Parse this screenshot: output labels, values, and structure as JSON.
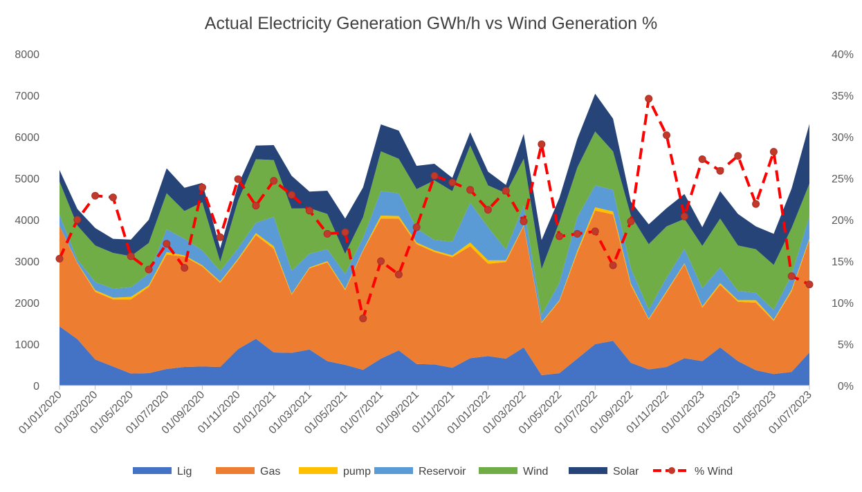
{
  "chart_data": {
    "type": "area",
    "title": "Actual Electricity Generation GWh/h vs Wind Generation %",
    "x_tick_labels": [
      "01/01/2020",
      "01/03/2020",
      "01/05/2020",
      "01/07/2020",
      "01/09/2020",
      "01/11/2020",
      "01/01/2021",
      "01/03/2021",
      "01/05/2021",
      "01/07/2021",
      "01/09/2021",
      "01/11/2021",
      "01/01/2022",
      "01/03/2022",
      "01/05/2022",
      "01/07/2022",
      "01/09/2022",
      "01/11/2022",
      "01/01/2023",
      "01/03/2023",
      "01/05/2023",
      "01/07/2023"
    ],
    "x": [
      "01/01/2020",
      "01/02/2020",
      "01/03/2020",
      "01/04/2020",
      "01/05/2020",
      "01/06/2020",
      "01/07/2020",
      "01/08/2020",
      "01/09/2020",
      "01/10/2020",
      "01/11/2020",
      "01/12/2020",
      "01/01/2021",
      "01/02/2021",
      "01/03/2021",
      "01/04/2021",
      "01/05/2021",
      "01/06/2021",
      "01/07/2021",
      "01/08/2021",
      "01/09/2021",
      "01/10/2021",
      "01/11/2021",
      "01/12/2021",
      "01/01/2022",
      "01/02/2022",
      "01/03/2022",
      "01/04/2022",
      "01/05/2022",
      "01/06/2022",
      "01/07/2022",
      "01/08/2022",
      "01/09/2022",
      "01/10/2022",
      "01/11/2022",
      "01/12/2022",
      "01/01/2023",
      "01/02/2023",
      "01/03/2023",
      "01/04/2023",
      "01/05/2023",
      "01/06/2023",
      "01/07/2023"
    ],
    "y_left": {
      "min": 0,
      "max": 8000,
      "step": 1000
    },
    "y_right": {
      "min": 0,
      "max": 40,
      "step": 5,
      "unit": "%"
    },
    "stacked_series": [
      {
        "name": "Lig",
        "color": "#4472c4",
        "values": [
          1430,
          1120,
          630,
          460,
          290,
          300,
          400,
          450,
          460,
          450,
          880,
          1130,
          800,
          790,
          870,
          590,
          500,
          380,
          650,
          850,
          520,
          510,
          430,
          660,
          710,
          650,
          920,
          250,
          300,
          650,
          1000,
          1080,
          550,
          390,
          450,
          660,
          590,
          920,
          590,
          370,
          280,
          330,
          800
        ]
      },
      {
        "name": "Gas",
        "color": "#ed7d31",
        "values": [
          2420,
          1830,
          1630,
          1620,
          1790,
          2080,
          2760,
          2660,
          2410,
          2030,
          2150,
          2500,
          2500,
          1400,
          1960,
          2380,
          1800,
          2870,
          3380,
          3180,
          2890,
          2710,
          2670,
          2700,
          2230,
          2330,
          2930,
          1260,
          1740,
          2550,
          3220,
          3050,
          1870,
          1200,
          1800,
          2270,
          1290,
          1510,
          1430,
          1630,
          1280,
          1940,
          2710
        ]
      },
      {
        "name": "pump",
        "color": "#ffc000",
        "values": [
          0,
          10,
          40,
          40,
          60,
          40,
          60,
          30,
          30,
          30,
          30,
          50,
          60,
          20,
          20,
          30,
          30,
          20,
          70,
          60,
          40,
          40,
          40,
          90,
          80,
          40,
          20,
          20,
          20,
          50,
          80,
          70,
          40,
          20,
          30,
          20,
          30,
          40,
          40,
          60,
          30,
          40,
          40
        ]
      },
      {
        "name": "Reservoir",
        "color": "#5b9bd5",
        "values": [
          270,
          80,
          200,
          220,
          230,
          280,
          550,
          400,
          360,
          250,
          250,
          250,
          710,
          560,
          330,
          290,
          360,
          290,
          590,
          550,
          340,
          250,
          330,
          960,
          800,
          260,
          470,
          170,
          420,
          810,
          530,
          520,
          370,
          220,
          320,
          350,
          440,
          380,
          220,
          180,
          240,
          350,
          540
        ]
      },
      {
        "name": "Wind",
        "color": "#70ad47",
        "values": [
          800,
          820,
          880,
          860,
          750,
          740,
          870,
          670,
          1160,
          230,
          1150,
          1530,
          1370,
          1500,
          1100,
          850,
          490,
          500,
          960,
          830,
          950,
          1440,
          1220,
          1380,
          1010,
          1360,
          1130,
          1110,
          1470,
          1200,
          1300,
          930,
          1270,
          1580,
          1240,
          720,
          1020,
          1180,
          1100,
          1050,
          1080,
          1140,
          780
        ]
      },
      {
        "name": "Solar",
        "color": "#264478",
        "values": [
          280,
          400,
          420,
          340,
          400,
          560,
          600,
          560,
          470,
          320,
          380,
          330,
          360,
          790,
          400,
          560,
          850,
          720,
          650,
          680,
          560,
          400,
          320,
          320,
          330,
          200,
          600,
          700,
          580,
          690,
          910,
          790,
          340,
          480,
          440,
          600,
          450,
          660,
          760,
          550,
          750,
          950,
          1440
        ]
      }
    ],
    "line_series": {
      "name": "% Wind",
      "color": "#ff0000",
      "marker_color": "#c0392b",
      "axis": "right",
      "values": [
        15.3,
        20.0,
        22.9,
        22.7,
        15.6,
        14.0,
        17.1,
        14.2,
        23.9,
        17.9,
        24.9,
        21.7,
        24.7,
        23.0,
        21.1,
        18.3,
        18.5,
        8.1,
        15.0,
        13.4,
        19.1,
        25.3,
        24.5,
        23.6,
        21.2,
        23.5,
        19.8,
        29.1,
        18.0,
        18.3,
        18.6,
        14.5,
        19.8,
        34.6,
        30.2,
        20.4,
        27.3,
        25.9,
        27.7,
        21.9,
        28.2,
        13.2,
        12.2
      ]
    },
    "legend": {
      "position": "bottom",
      "items": [
        {
          "label": "Lig",
          "color": "#4472c4",
          "kind": "area"
        },
        {
          "label": "Gas",
          "color": "#ed7d31",
          "kind": "area"
        },
        {
          "label": "pump",
          "color": "#ffc000",
          "kind": "area"
        },
        {
          "label": "Reservoir",
          "color": "#5b9bd5",
          "kind": "area"
        },
        {
          "label": "Wind",
          "color": "#70ad47",
          "kind": "area"
        },
        {
          "label": "Solar",
          "color": "#264478",
          "kind": "area"
        },
        {
          "label": "% Wind",
          "color": "#ff0000",
          "kind": "line"
        }
      ]
    },
    "grid": false
  }
}
